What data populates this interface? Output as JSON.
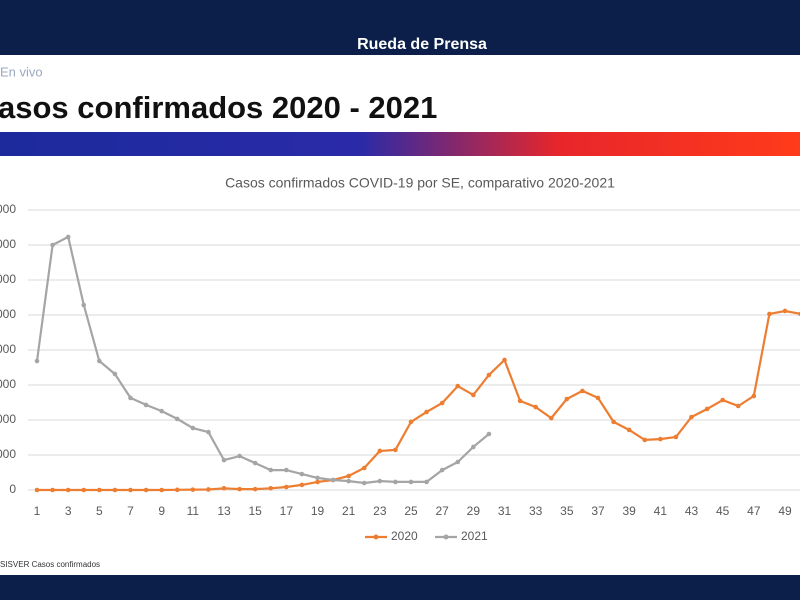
{
  "header": {
    "banner": "Rueda de Prensa",
    "live": "En vivo",
    "title": "asos confirmados 2020 - 2021",
    "source": "SISVER Casos confirmados"
  },
  "chart_data": {
    "type": "line",
    "title": "Casos confirmados COVID-19 por SE, comparativo 2020-2021",
    "categories": [
      "1",
      null,
      "3",
      null,
      "5",
      null,
      "7",
      null,
      "9",
      null,
      "11",
      null,
      "13",
      null,
      "15",
      null,
      "17",
      null,
      "19",
      null,
      "21",
      null,
      "23",
      null,
      "25",
      null,
      "27",
      null,
      "29",
      null,
      "31",
      null,
      "33",
      null,
      "35",
      null,
      "37",
      null,
      "39",
      null,
      "41",
      null,
      "43",
      null,
      "45",
      null,
      "47",
      null,
      "49",
      null
    ],
    "series": [
      {
        "name": "2020",
        "color": "#ed7d31",
        "values": [
          0,
          0,
          0,
          0,
          0,
          0,
          0,
          0,
          0,
          100,
          200,
          300,
          1000,
          500,
          500,
          1000,
          1700,
          2900,
          4600,
          5700,
          8000,
          12600,
          22300,
          22900,
          38900,
          44600,
          49700,
          59400,
          54300,
          65700,
          74300,
          50900,
          47400,
          41100,
          52000,
          56600,
          52600,
          38900,
          34300,
          28600,
          29100,
          30300,
          41700,
          46300,
          51400,
          48000,
          53700,
          100600,
          102300,
          100600
        ]
      },
      {
        "name": "2021",
        "color": "#a5a5a5",
        "values": [
          73700,
          140000,
          144600,
          105700,
          73700,
          66300,
          52600,
          48600,
          45100,
          40600,
          35400,
          33100,
          17100,
          19400,
          15400,
          11400,
          11400,
          9100,
          6900,
          5700,
          5100,
          4000,
          5100,
          4600,
          4600,
          4600,
          11400,
          16000,
          24600,
          32000,
          null,
          null,
          null,
          null,
          null,
          null,
          null,
          null,
          null,
          null,
          null,
          null,
          null,
          null,
          null,
          null,
          null,
          null,
          null,
          null
        ]
      }
    ],
    "ylim": [
      0,
      160000
    ],
    "yticks": [
      0,
      {
        "value": 20000,
        "label": "000"
      },
      {
        "value": 40000,
        "label": "000"
      },
      {
        "value": 60000,
        "label": "000"
      },
      {
        "value": 80000,
        "label": "000"
      },
      {
        "value": 100000,
        "label": "000"
      },
      {
        "value": 120000,
        "label": "000"
      },
      {
        "value": 140000,
        "label": "000"
      },
      {
        "value": 160000,
        "label": "000"
      }
    ],
    "grid": true,
    "legend": "bottom"
  }
}
